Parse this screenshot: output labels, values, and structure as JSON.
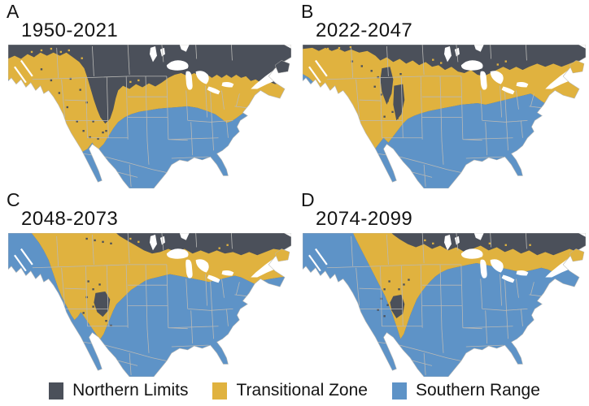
{
  "panels": [
    {
      "label": "A",
      "period": "1950-2021"
    },
    {
      "label": "B",
      "period": "2022-2047"
    },
    {
      "label": "C",
      "period": "2048-2073"
    },
    {
      "label": "D",
      "period": "2074-2099"
    }
  ],
  "legend": {
    "items": [
      {
        "label": "Northern Limits",
        "zone": "northern"
      },
      {
        "label": "Transitional Zone",
        "zone": "transitional"
      },
      {
        "label": "Southern Range",
        "zone": "southern"
      }
    ]
  },
  "colors": {
    "northern": "#4b505a",
    "transitional": "#e0b23f",
    "southern": "#5e93c7",
    "state_borders": "#b9b9b6",
    "water": "#ffffff",
    "label_text": "#141414"
  }
}
